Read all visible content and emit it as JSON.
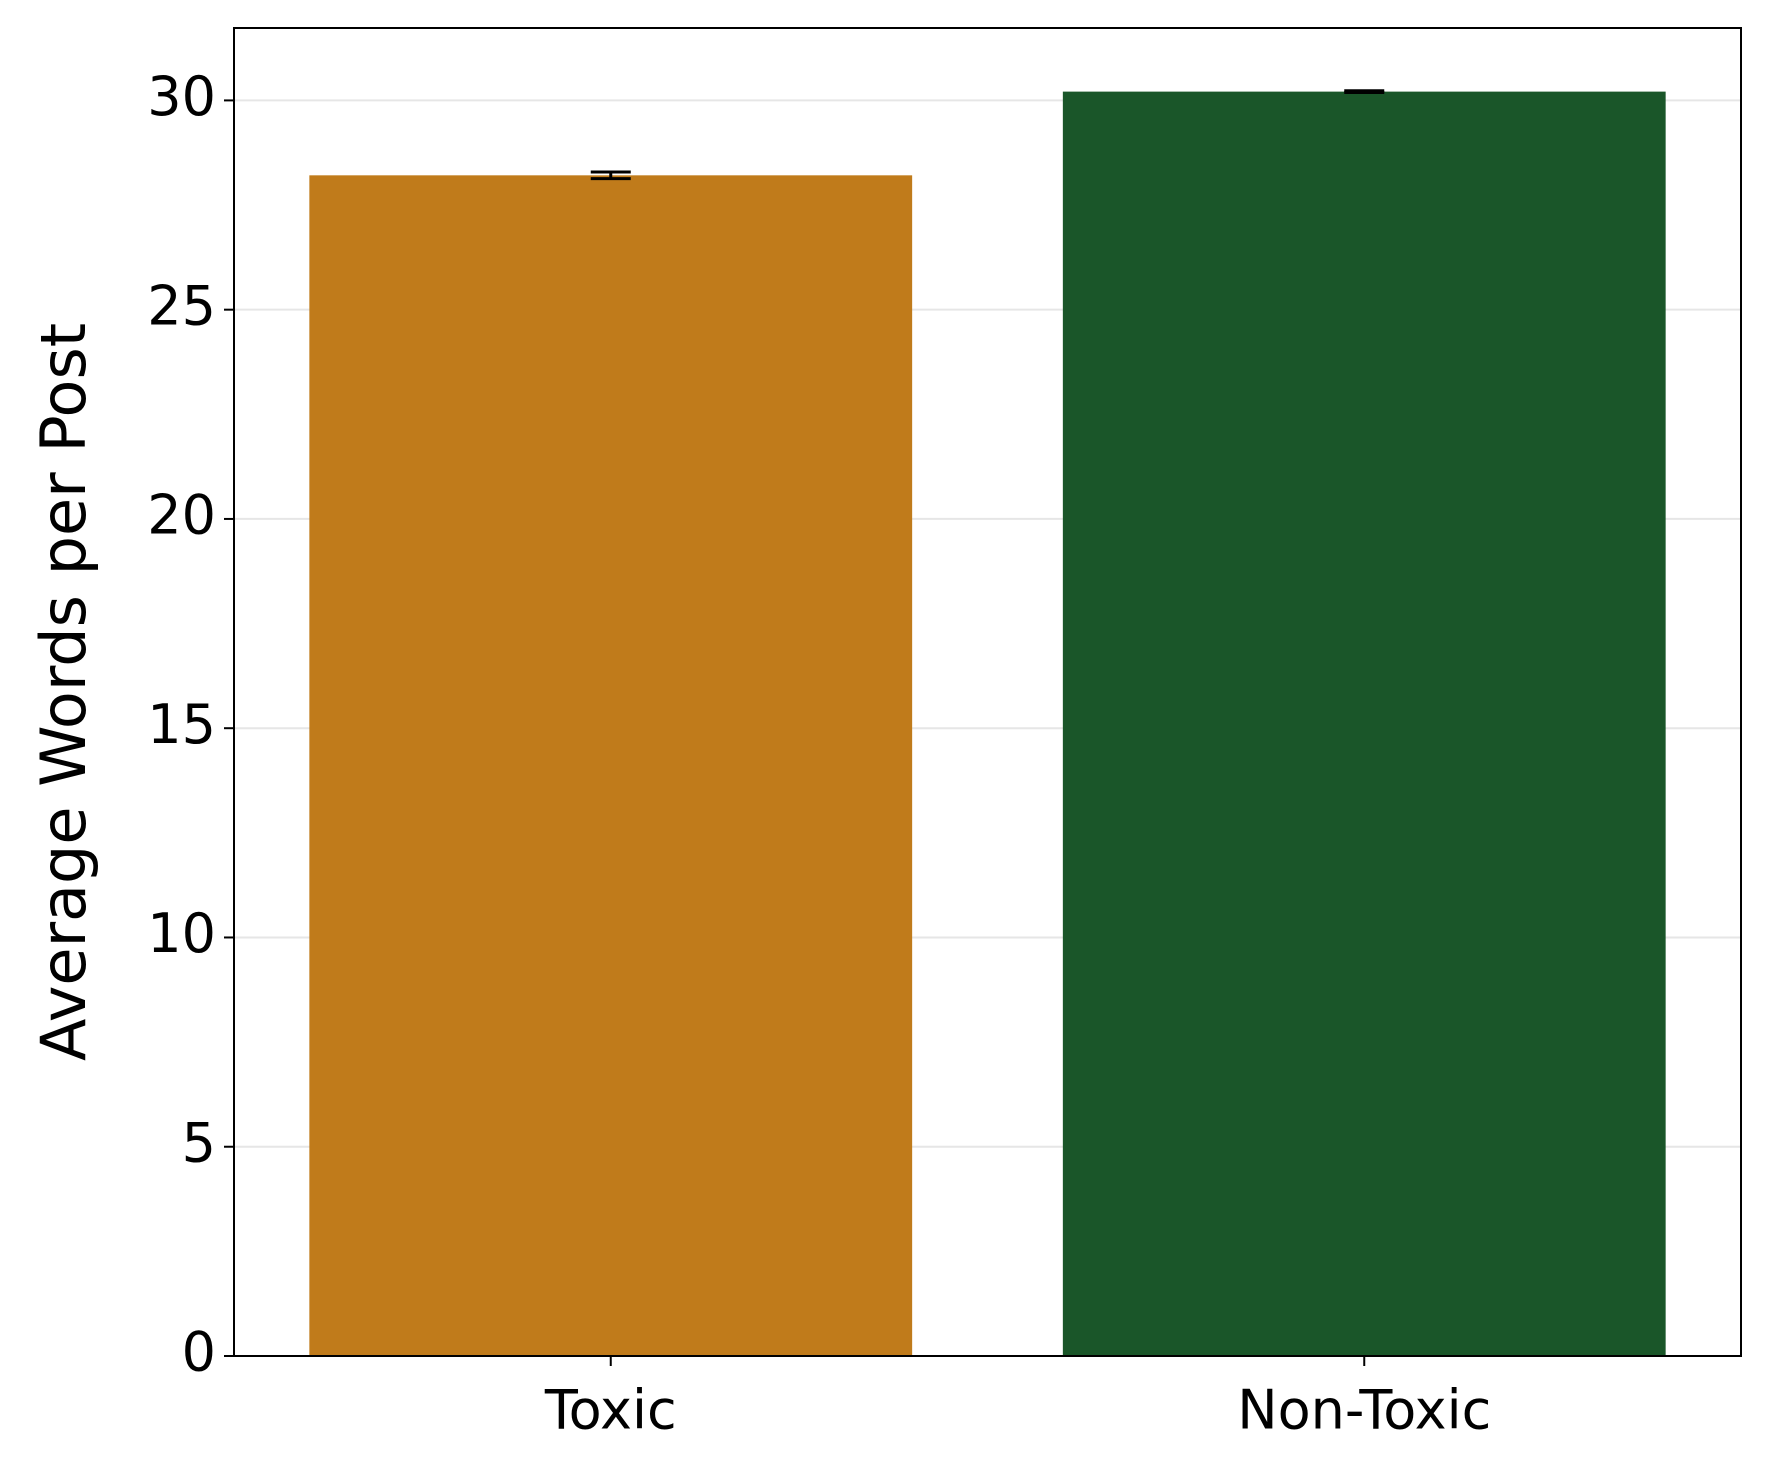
{
  "chart_data": {
    "type": "bar",
    "y_label": "Average Words per Post",
    "categories": [
      "Toxic",
      "Non-Toxic"
    ],
    "values": [
      28.21,
      30.21
    ],
    "errors": [
      0.08,
      0.02
    ],
    "colors": [
      "#c07b1b",
      "#1a5629"
    ],
    "ylim": [
      0,
      31.73
    ],
    "yticks": [
      0,
      5,
      10,
      15,
      20,
      25,
      30
    ],
    "grid": true
  }
}
